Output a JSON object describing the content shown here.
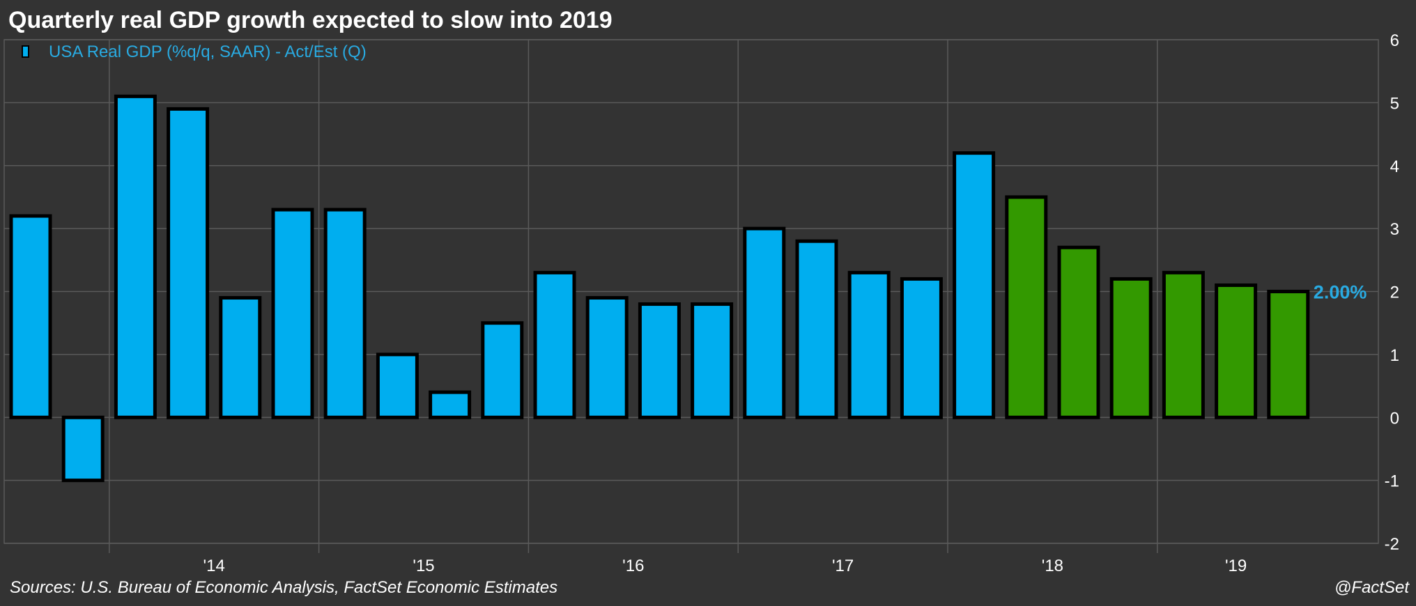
{
  "title": "Quarterly real GDP growth expected to slow into 2019",
  "source": "Sources: U.S. Bureau of Economic Analysis, FactSet Economic Estimates",
  "credit": "@FactSet",
  "colors": {
    "background": "#333333",
    "grid": "#5a5a5a",
    "actual": "#00aeef",
    "estimate": "#339900",
    "bar_border": "#000000",
    "legend_text": "#29abe2",
    "axis_text": "#ffffff"
  },
  "chart_data": {
    "type": "bar",
    "title": "Quarterly real GDP growth expected to slow into 2019",
    "xlabel": "",
    "ylabel": "",
    "ylim": [
      -2,
      6
    ],
    "yticks": [
      -2,
      -1,
      0,
      1,
      2,
      3,
      4,
      5,
      6
    ],
    "y_axis_side": "right",
    "grid": true,
    "legend_position": "top-left",
    "year_labels": [
      "'14",
      "'15",
      "'16",
      "'17",
      "'18",
      "'19"
    ],
    "series": [
      {
        "name": "USA Real GDP (%q/q, SAAR) - Act/Est (Q)",
        "values": [
          3.2,
          -1.0,
          5.1,
          4.9,
          1.9,
          3.3,
          3.3,
          1.0,
          0.4,
          1.5,
          2.3,
          1.9,
          1.8,
          1.8,
          3.0,
          2.8,
          2.3,
          2.2,
          4.2,
          3.5,
          2.7,
          2.2,
          2.3,
          2.1,
          2.0
        ],
        "status": [
          "act",
          "act",
          "act",
          "act",
          "act",
          "act",
          "act",
          "act",
          "act",
          "act",
          "act",
          "act",
          "act",
          "act",
          "act",
          "act",
          "act",
          "act",
          "act",
          "est",
          "est",
          "est",
          "est",
          "est",
          "est"
        ]
      }
    ],
    "last_value_label": "2.00%"
  }
}
